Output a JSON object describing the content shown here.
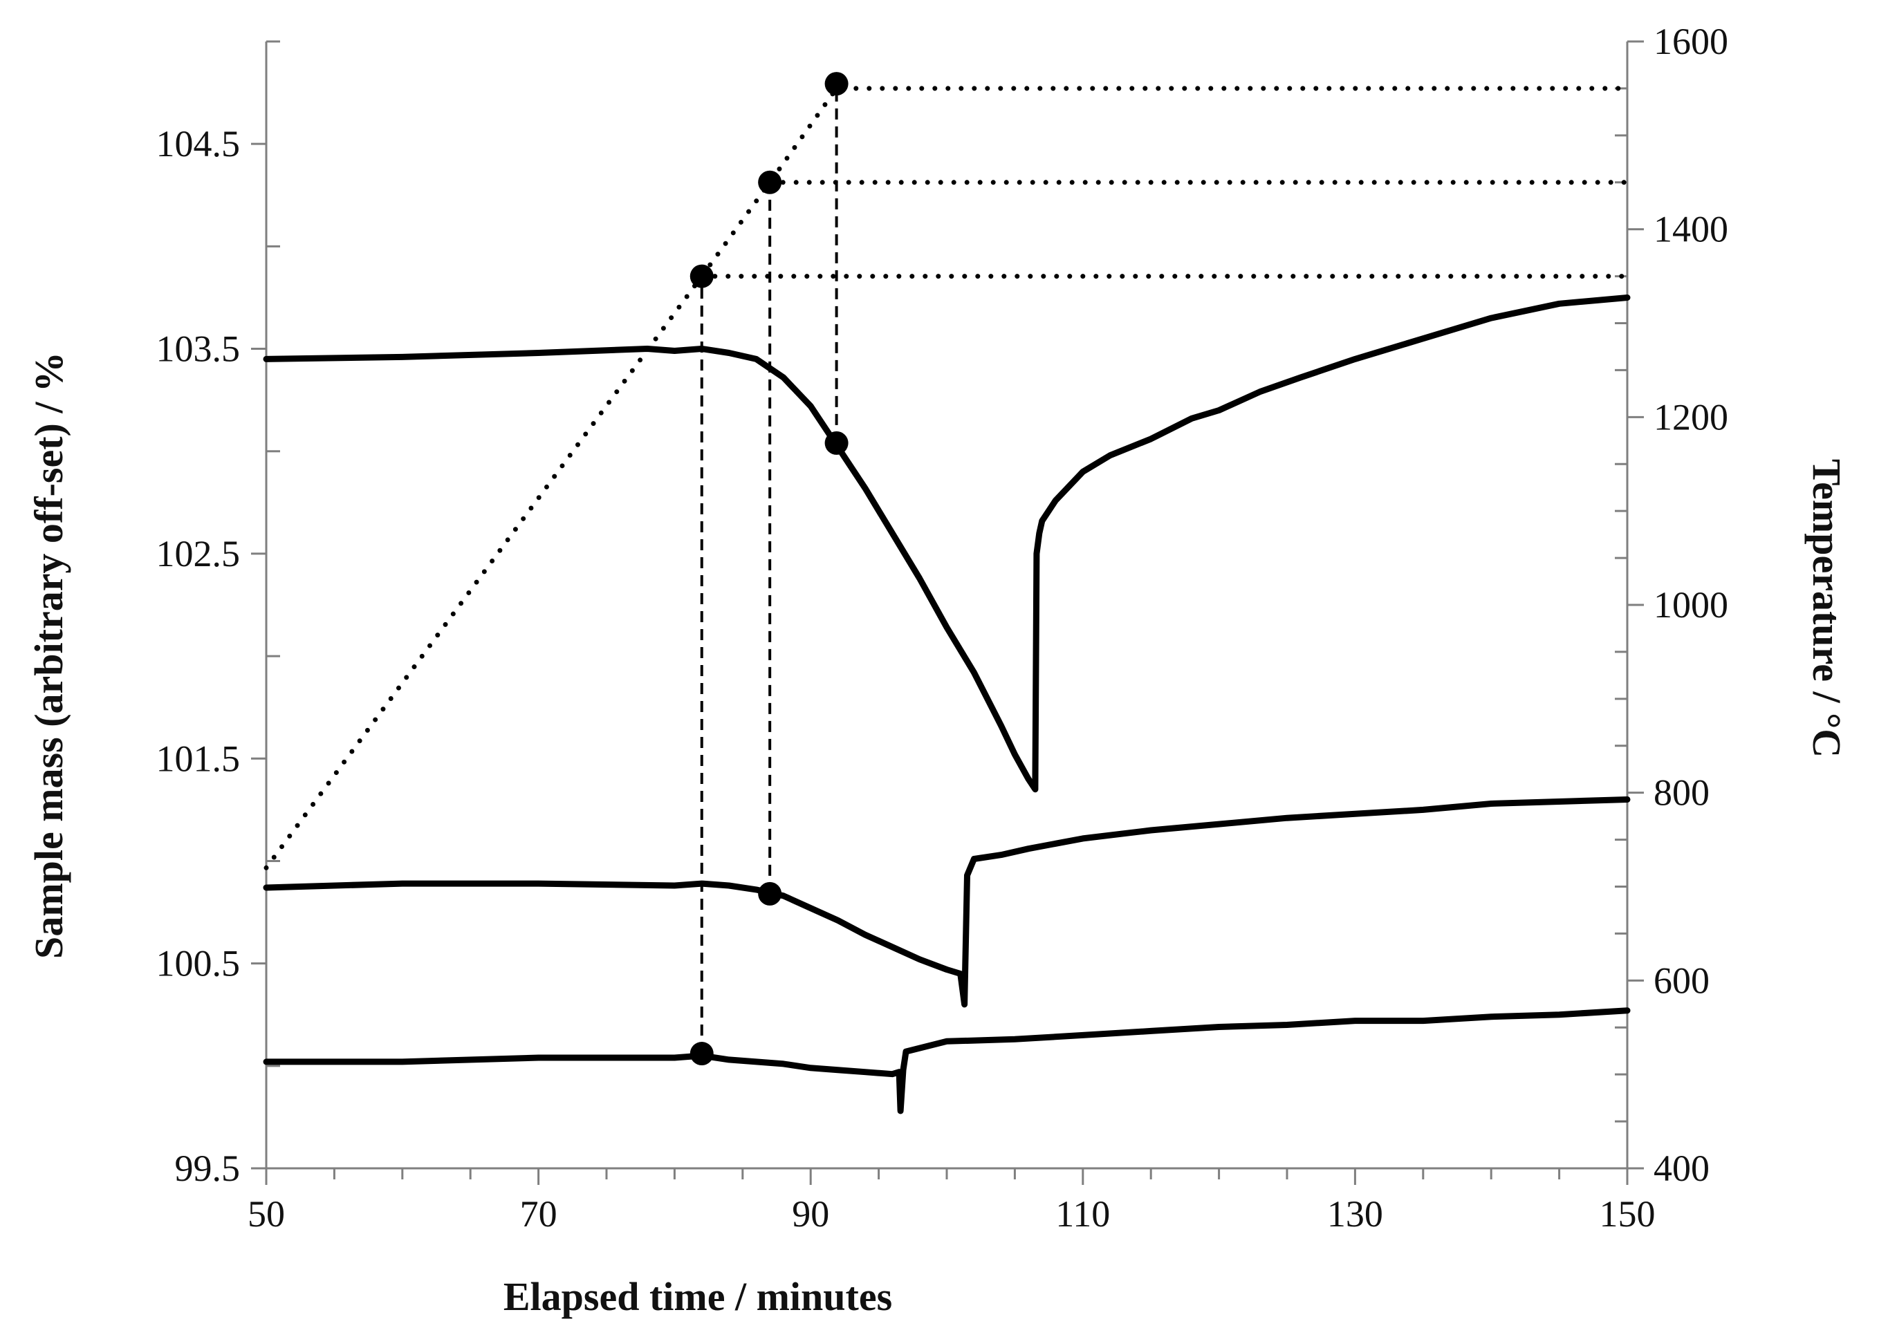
{
  "chart_data": {
    "type": "line",
    "xlabel": "Elapsed time / minutes",
    "ylabel": "Sample mass (arbitrary off-set) / %",
    "y2label": "Temperature / °C",
    "xlim": [
      50,
      150
    ],
    "ylim": [
      99.5,
      105
    ],
    "y2lim": [
      400,
      1600
    ],
    "xticks": [
      "50",
      "70",
      "90",
      "110",
      "130",
      "150"
    ],
    "yticks": [
      "99.5",
      "100.5",
      "101.5",
      "102.5",
      "103.5",
      "104.5"
    ],
    "y2ticks": [
      "400",
      "600",
      "800",
      "1000",
      "1200",
      "1400",
      "1600"
    ],
    "grid": false,
    "series": [
      {
        "axis": "left",
        "style": "solid",
        "x": [
          50,
          60,
          70,
          78,
          80,
          82,
          84,
          86,
          88,
          90,
          92,
          94,
          96,
          98,
          100,
          102,
          104,
          105,
          106,
          106.5,
          106.6,
          106.8,
          107,
          108,
          110,
          112,
          115,
          118,
          120,
          123,
          126,
          130,
          135,
          140,
          145,
          150
        ],
        "y": [
          103.45,
          103.46,
          103.48,
          103.5,
          103.49,
          103.5,
          103.48,
          103.45,
          103.36,
          103.22,
          103.02,
          102.82,
          102.6,
          102.38,
          102.14,
          101.92,
          101.66,
          101.52,
          101.4,
          101.35,
          102.5,
          102.6,
          102.66,
          102.76,
          102.9,
          102.98,
          103.06,
          103.16,
          103.2,
          103.29,
          103.36,
          103.45,
          103.55,
          103.65,
          103.72,
          103.75
        ]
      },
      {
        "axis": "left",
        "style": "solid",
        "x": [
          50,
          60,
          70,
          80,
          82,
          84,
          86,
          88,
          90,
          92,
          94,
          96,
          98,
          100,
          101,
          101.3,
          101.5,
          102,
          104,
          106,
          110,
          115,
          120,
          125,
          130,
          135,
          140,
          145,
          150
        ],
        "y": [
          100.87,
          100.89,
          100.89,
          100.88,
          100.89,
          100.88,
          100.86,
          100.83,
          100.77,
          100.71,
          100.64,
          100.58,
          100.52,
          100.47,
          100.45,
          100.3,
          100.93,
          101.01,
          101.03,
          101.06,
          101.11,
          101.15,
          101.18,
          101.21,
          101.23,
          101.25,
          101.28,
          101.29,
          101.3
        ]
      },
      {
        "axis": "left",
        "style": "solid",
        "x": [
          50,
          60,
          70,
          80,
          82,
          84,
          86,
          88,
          90,
          92,
          94,
          96,
          96.5,
          96.6,
          96.8,
          97,
          100,
          105,
          110,
          115,
          120,
          125,
          130,
          135,
          140,
          145,
          150
        ],
        "y": [
          100.02,
          100.02,
          100.04,
          100.04,
          100.05,
          100.03,
          100.02,
          100.01,
          99.99,
          99.98,
          99.97,
          99.96,
          99.97,
          99.78,
          99.98,
          100.07,
          100.12,
          100.13,
          100.15,
          100.17,
          100.19,
          100.2,
          100.22,
          100.22,
          100.24,
          100.25,
          100.27
        ]
      },
      {
        "axis": "right",
        "style": "dotted",
        "x": [
          50,
          82,
          87,
          91.9,
          150
        ],
        "y": [
          720,
          1350,
          1450,
          1550,
          1550
        ]
      },
      {
        "axis": "right",
        "style": "dotted",
        "x": [
          87,
          150
        ],
        "y": [
          1450,
          1450
        ]
      },
      {
        "axis": "right",
        "style": "dotted",
        "x": [
          82,
          150
        ],
        "y": [
          1350,
          1350
        ]
      }
    ],
    "markers": [
      {
        "x": 91.9,
        "y": 103.04,
        "axis": "left"
      },
      {
        "x": 87,
        "y": 100.84,
        "axis": "left"
      },
      {
        "x": 82,
        "y": 100.06,
        "axis": "left"
      },
      {
        "x": 82,
        "y": 1350,
        "axis": "right"
      },
      {
        "x": 87,
        "y": 1450,
        "axis": "right"
      },
      {
        "x": 91.9,
        "y": 1555,
        "axis": "right"
      }
    ],
    "drop_lines": [
      {
        "x": 82,
        "from_y": 100.06,
        "to_t": 1350
      },
      {
        "x": 87,
        "from_y": 100.84,
        "to_t": 1450
      },
      {
        "x": 91.9,
        "from_y": 103.04,
        "to_t": 1555
      }
    ]
  }
}
